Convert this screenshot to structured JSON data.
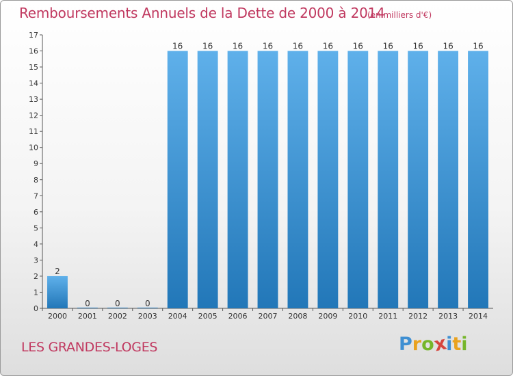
{
  "chart_title": "Remboursements Annuels de la Dette de 2000 à 2014",
  "chart_subtitle": "(en milliers d'€)",
  "location": "LES GRANDES-LOGES",
  "brand": {
    "letters": [
      "P",
      "r",
      "o",
      "x",
      "i",
      "t",
      "i"
    ],
    "colors": [
      "#3f8fd2",
      "#e9a21f",
      "#76b62a",
      "#d6453d",
      "#3f8fd2",
      "#e9a21f",
      "#76b62a"
    ]
  },
  "colors": {
    "bar_light": "#5fb0ea",
    "bar_dark": "#2277b8",
    "title": "#c0385f"
  },
  "chart_data": {
    "type": "bar",
    "title": "Remboursements Annuels de la Dette de 2000 à 2014",
    "subtitle": "(en milliers d'€)",
    "categories": [
      "2000",
      "2001",
      "2002",
      "2003",
      "2004",
      "2005",
      "2006",
      "2007",
      "2008",
      "2009",
      "2010",
      "2011",
      "2012",
      "2013",
      "2014"
    ],
    "values": [
      2,
      0,
      0,
      0,
      16,
      16,
      16,
      16,
      16,
      16,
      16,
      16,
      16,
      16,
      16
    ],
    "ylim": [
      0,
      17
    ],
    "yticks": [
      0,
      1,
      2,
      3,
      4,
      5,
      6,
      7,
      8,
      9,
      10,
      11,
      12,
      13,
      14,
      15,
      16,
      17
    ],
    "xlabel": "",
    "ylabel": "",
    "grid": false,
    "data_labels": true
  }
}
